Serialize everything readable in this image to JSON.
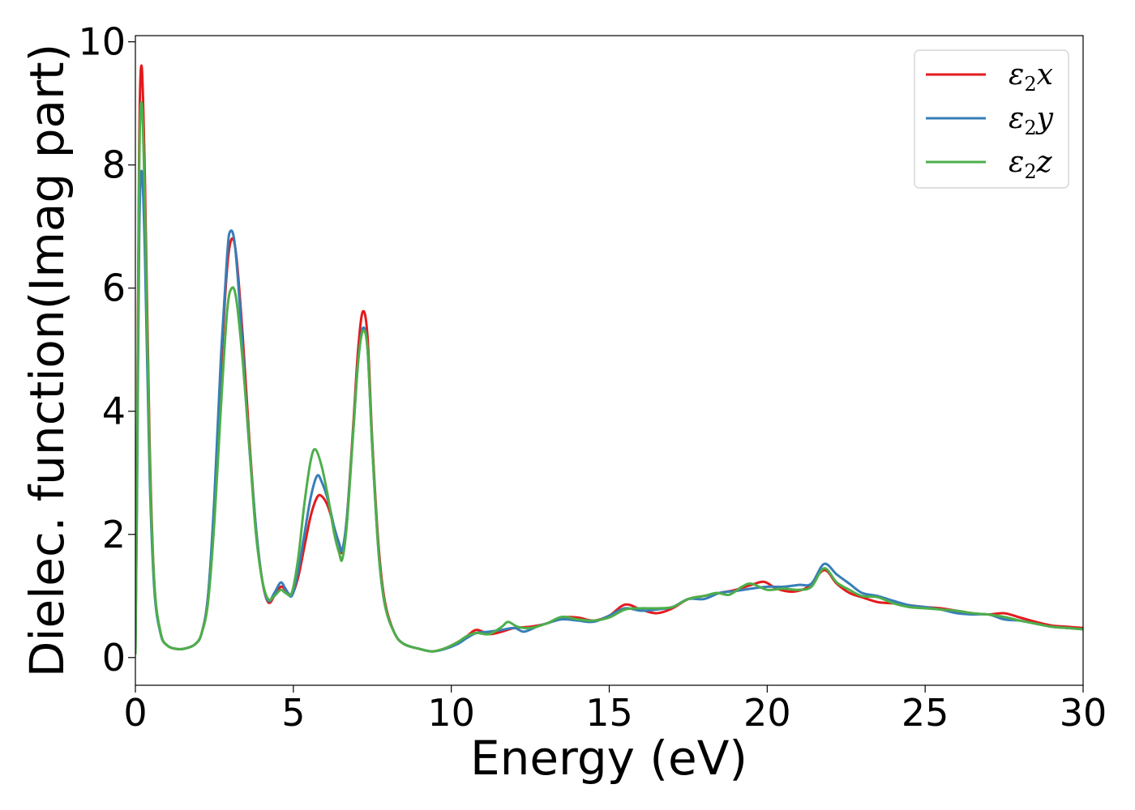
{
  "chart_data": {
    "type": "line",
    "xlabel": "Energy (eV)",
    "ylabel": "Dielec. function(Imag part)",
    "xlim": [
      0,
      30
    ],
    "ylim": [
      -0.45,
      10.1
    ],
    "xticks": [
      0,
      5,
      10,
      15,
      20,
      25,
      30
    ],
    "yticks": [
      0,
      2,
      4,
      6,
      8,
      10
    ],
    "grid": false,
    "legend_position": "top-right",
    "series": [
      {
        "name": "ε2x",
        "legend": {
          "base": "ε",
          "sub": "2",
          "tail": "x"
        },
        "color": "#e41a1c",
        "points": [
          [
            0,
            0.05
          ],
          [
            0.05,
            3.0
          ],
          [
            0.12,
            8.3
          ],
          [
            0.2,
            9.6
          ],
          [
            0.3,
            7.8
          ],
          [
            0.45,
            3.5
          ],
          [
            0.6,
            1.2
          ],
          [
            0.8,
            0.4
          ],
          [
            1.0,
            0.2
          ],
          [
            1.3,
            0.14
          ],
          [
            1.6,
            0.15
          ],
          [
            1.9,
            0.22
          ],
          [
            2.1,
            0.4
          ],
          [
            2.3,
            1.0
          ],
          [
            2.5,
            2.5
          ],
          [
            2.7,
            4.6
          ],
          [
            2.9,
            6.3
          ],
          [
            3.05,
            6.8
          ],
          [
            3.2,
            6.5
          ],
          [
            3.4,
            5.2
          ],
          [
            3.6,
            3.6
          ],
          [
            3.8,
            2.2
          ],
          [
            4.0,
            1.3
          ],
          [
            4.2,
            0.9
          ],
          [
            4.4,
            1.0
          ],
          [
            4.6,
            1.15
          ],
          [
            4.75,
            1.1
          ],
          [
            4.95,
            1.02
          ],
          [
            5.15,
            1.3
          ],
          [
            5.35,
            1.8
          ],
          [
            5.55,
            2.3
          ],
          [
            5.75,
            2.6
          ],
          [
            5.9,
            2.62
          ],
          [
            6.1,
            2.45
          ],
          [
            6.3,
            2.1
          ],
          [
            6.45,
            1.85
          ],
          [
            6.55,
            1.72
          ],
          [
            6.7,
            2.3
          ],
          [
            6.9,
            3.8
          ],
          [
            7.05,
            5.0
          ],
          [
            7.2,
            5.62
          ],
          [
            7.35,
            5.2
          ],
          [
            7.5,
            3.5
          ],
          [
            7.7,
            1.8
          ],
          [
            7.9,
            0.9
          ],
          [
            8.2,
            0.4
          ],
          [
            8.5,
            0.22
          ],
          [
            9.0,
            0.14
          ],
          [
            9.4,
            0.1
          ],
          [
            9.8,
            0.15
          ],
          [
            10.2,
            0.25
          ],
          [
            10.5,
            0.35
          ],
          [
            10.8,
            0.45
          ],
          [
            11.2,
            0.38
          ],
          [
            11.6,
            0.42
          ],
          [
            12.0,
            0.48
          ],
          [
            12.5,
            0.5
          ],
          [
            13.0,
            0.55
          ],
          [
            13.5,
            0.65
          ],
          [
            14.0,
            0.65
          ],
          [
            14.5,
            0.6
          ],
          [
            15.0,
            0.68
          ],
          [
            15.5,
            0.86
          ],
          [
            16.0,
            0.78
          ],
          [
            16.5,
            0.72
          ],
          [
            17.0,
            0.8
          ],
          [
            17.5,
            0.95
          ],
          [
            18.0,
            1.0
          ],
          [
            18.5,
            1.05
          ],
          [
            19.0,
            1.1
          ],
          [
            19.5,
            1.18
          ],
          [
            19.9,
            1.23
          ],
          [
            20.3,
            1.12
          ],
          [
            20.8,
            1.07
          ],
          [
            21.3,
            1.15
          ],
          [
            21.8,
            1.42
          ],
          [
            22.2,
            1.2
          ],
          [
            22.6,
            1.05
          ],
          [
            23.0,
            0.98
          ],
          [
            23.5,
            0.9
          ],
          [
            24.0,
            0.88
          ],
          [
            24.5,
            0.85
          ],
          [
            25.0,
            0.82
          ],
          [
            25.5,
            0.8
          ],
          [
            26.0,
            0.76
          ],
          [
            26.5,
            0.72
          ],
          [
            27.0,
            0.7
          ],
          [
            27.5,
            0.72
          ],
          [
            28.0,
            0.65
          ],
          [
            28.5,
            0.58
          ],
          [
            29.0,
            0.52
          ],
          [
            29.5,
            0.5
          ],
          [
            30.0,
            0.48
          ]
        ]
      },
      {
        "name": "ε2y",
        "legend": {
          "base": "ε",
          "sub": "2",
          "tail": "y"
        },
        "color": "#377eb8",
        "points": [
          [
            0,
            0.05
          ],
          [
            0.05,
            2.5
          ],
          [
            0.12,
            6.8
          ],
          [
            0.2,
            7.9
          ],
          [
            0.3,
            6.6
          ],
          [
            0.45,
            3.0
          ],
          [
            0.6,
            1.1
          ],
          [
            0.8,
            0.38
          ],
          [
            1.0,
            0.2
          ],
          [
            1.3,
            0.14
          ],
          [
            1.6,
            0.15
          ],
          [
            1.9,
            0.22
          ],
          [
            2.1,
            0.4
          ],
          [
            2.3,
            1.0
          ],
          [
            2.5,
            2.6
          ],
          [
            2.7,
            4.8
          ],
          [
            2.9,
            6.5
          ],
          [
            3.0,
            6.92
          ],
          [
            3.15,
            6.7
          ],
          [
            3.35,
            5.4
          ],
          [
            3.55,
            3.8
          ],
          [
            3.8,
            2.2
          ],
          [
            4.0,
            1.3
          ],
          [
            4.2,
            0.92
          ],
          [
            4.4,
            1.05
          ],
          [
            4.6,
            1.22
          ],
          [
            4.75,
            1.12
          ],
          [
            4.95,
            1.0
          ],
          [
            5.15,
            1.4
          ],
          [
            5.35,
            2.0
          ],
          [
            5.55,
            2.6
          ],
          [
            5.75,
            2.95
          ],
          [
            5.9,
            2.85
          ],
          [
            6.1,
            2.55
          ],
          [
            6.3,
            2.1
          ],
          [
            6.45,
            1.85
          ],
          [
            6.55,
            1.75
          ],
          [
            6.7,
            2.3
          ],
          [
            6.9,
            3.7
          ],
          [
            7.05,
            4.8
          ],
          [
            7.2,
            5.35
          ],
          [
            7.35,
            5.0
          ],
          [
            7.5,
            3.4
          ],
          [
            7.7,
            1.7
          ],
          [
            7.9,
            0.85
          ],
          [
            8.2,
            0.4
          ],
          [
            8.5,
            0.22
          ],
          [
            9.0,
            0.14
          ],
          [
            9.4,
            0.1
          ],
          [
            9.8,
            0.14
          ],
          [
            10.2,
            0.22
          ],
          [
            10.5,
            0.32
          ],
          [
            10.8,
            0.4
          ],
          [
            11.2,
            0.42
          ],
          [
            11.6,
            0.45
          ],
          [
            12.0,
            0.48
          ],
          [
            12.3,
            0.42
          ],
          [
            12.7,
            0.5
          ],
          [
            13.0,
            0.55
          ],
          [
            13.5,
            0.62
          ],
          [
            14.0,
            0.6
          ],
          [
            14.5,
            0.58
          ],
          [
            15.0,
            0.68
          ],
          [
            15.5,
            0.8
          ],
          [
            16.0,
            0.76
          ],
          [
            16.5,
            0.78
          ],
          [
            17.0,
            0.82
          ],
          [
            17.5,
            0.95
          ],
          [
            18.0,
            0.95
          ],
          [
            18.5,
            1.05
          ],
          [
            19.0,
            1.08
          ],
          [
            19.5,
            1.12
          ],
          [
            20.0,
            1.15
          ],
          [
            20.5,
            1.15
          ],
          [
            21.0,
            1.18
          ],
          [
            21.4,
            1.2
          ],
          [
            21.8,
            1.52
          ],
          [
            22.2,
            1.35
          ],
          [
            22.6,
            1.2
          ],
          [
            23.0,
            1.05
          ],
          [
            23.5,
            1.0
          ],
          [
            24.0,
            0.92
          ],
          [
            24.5,
            0.85
          ],
          [
            25.0,
            0.82
          ],
          [
            25.5,
            0.78
          ],
          [
            26.0,
            0.72
          ],
          [
            26.5,
            0.7
          ],
          [
            27.0,
            0.7
          ],
          [
            27.5,
            0.62
          ],
          [
            28.0,
            0.6
          ],
          [
            28.5,
            0.55
          ],
          [
            29.0,
            0.5
          ],
          [
            29.5,
            0.48
          ],
          [
            30.0,
            0.46
          ]
        ]
      },
      {
        "name": "ε2z",
        "legend": {
          "base": "ε",
          "sub": "2",
          "tail": "z"
        },
        "color": "#4daf4a",
        "points": [
          [
            0,
            0.05
          ],
          [
            0.05,
            2.8
          ],
          [
            0.12,
            7.9
          ],
          [
            0.2,
            9.0
          ],
          [
            0.3,
            7.4
          ],
          [
            0.45,
            3.3
          ],
          [
            0.6,
            1.2
          ],
          [
            0.8,
            0.4
          ],
          [
            1.0,
            0.2
          ],
          [
            1.3,
            0.14
          ],
          [
            1.6,
            0.15
          ],
          [
            1.9,
            0.22
          ],
          [
            2.1,
            0.4
          ],
          [
            2.3,
            0.9
          ],
          [
            2.5,
            2.2
          ],
          [
            2.7,
            4.0
          ],
          [
            2.9,
            5.6
          ],
          [
            3.05,
            6.0
          ],
          [
            3.2,
            5.8
          ],
          [
            3.4,
            4.8
          ],
          [
            3.6,
            3.5
          ],
          [
            3.8,
            2.1
          ],
          [
            4.0,
            1.3
          ],
          [
            4.2,
            0.95
          ],
          [
            4.4,
            1.0
          ],
          [
            4.6,
            1.1
          ],
          [
            4.75,
            1.05
          ],
          [
            4.95,
            1.05
          ],
          [
            5.15,
            1.6
          ],
          [
            5.35,
            2.5
          ],
          [
            5.55,
            3.2
          ],
          [
            5.7,
            3.38
          ],
          [
            5.9,
            3.1
          ],
          [
            6.1,
            2.6
          ],
          [
            6.3,
            2.0
          ],
          [
            6.45,
            1.7
          ],
          [
            6.55,
            1.6
          ],
          [
            6.7,
            2.2
          ],
          [
            6.9,
            3.7
          ],
          [
            7.05,
            4.8
          ],
          [
            7.2,
            5.3
          ],
          [
            7.35,
            5.0
          ],
          [
            7.5,
            3.4
          ],
          [
            7.7,
            1.7
          ],
          [
            7.9,
            0.85
          ],
          [
            8.2,
            0.4
          ],
          [
            8.5,
            0.22
          ],
          [
            9.0,
            0.14
          ],
          [
            9.4,
            0.1
          ],
          [
            9.8,
            0.15
          ],
          [
            10.2,
            0.25
          ],
          [
            10.5,
            0.35
          ],
          [
            10.8,
            0.4
          ],
          [
            11.2,
            0.38
          ],
          [
            11.6,
            0.5
          ],
          [
            11.8,
            0.58
          ],
          [
            12.1,
            0.5
          ],
          [
            12.5,
            0.48
          ],
          [
            13.0,
            0.55
          ],
          [
            13.5,
            0.66
          ],
          [
            14.0,
            0.62
          ],
          [
            14.5,
            0.6
          ],
          [
            15.0,
            0.65
          ],
          [
            15.5,
            0.78
          ],
          [
            16.0,
            0.8
          ],
          [
            16.5,
            0.8
          ],
          [
            17.0,
            0.82
          ],
          [
            17.5,
            0.95
          ],
          [
            18.0,
            1.0
          ],
          [
            18.4,
            1.05
          ],
          [
            18.8,
            1.02
          ],
          [
            19.2,
            1.15
          ],
          [
            19.5,
            1.2
          ],
          [
            20.0,
            1.1
          ],
          [
            20.5,
            1.12
          ],
          [
            21.0,
            1.1
          ],
          [
            21.4,
            1.15
          ],
          [
            21.8,
            1.45
          ],
          [
            22.2,
            1.22
          ],
          [
            22.6,
            1.1
          ],
          [
            23.0,
            1.0
          ],
          [
            23.5,
            0.98
          ],
          [
            24.0,
            0.88
          ],
          [
            24.5,
            0.82
          ],
          [
            25.0,
            0.8
          ],
          [
            25.5,
            0.78
          ],
          [
            26.0,
            0.76
          ],
          [
            26.5,
            0.72
          ],
          [
            27.0,
            0.7
          ],
          [
            27.5,
            0.66
          ],
          [
            28.0,
            0.6
          ],
          [
            28.5,
            0.55
          ],
          [
            29.0,
            0.5
          ],
          [
            29.5,
            0.48
          ],
          [
            30.0,
            0.46
          ]
        ]
      }
    ]
  }
}
